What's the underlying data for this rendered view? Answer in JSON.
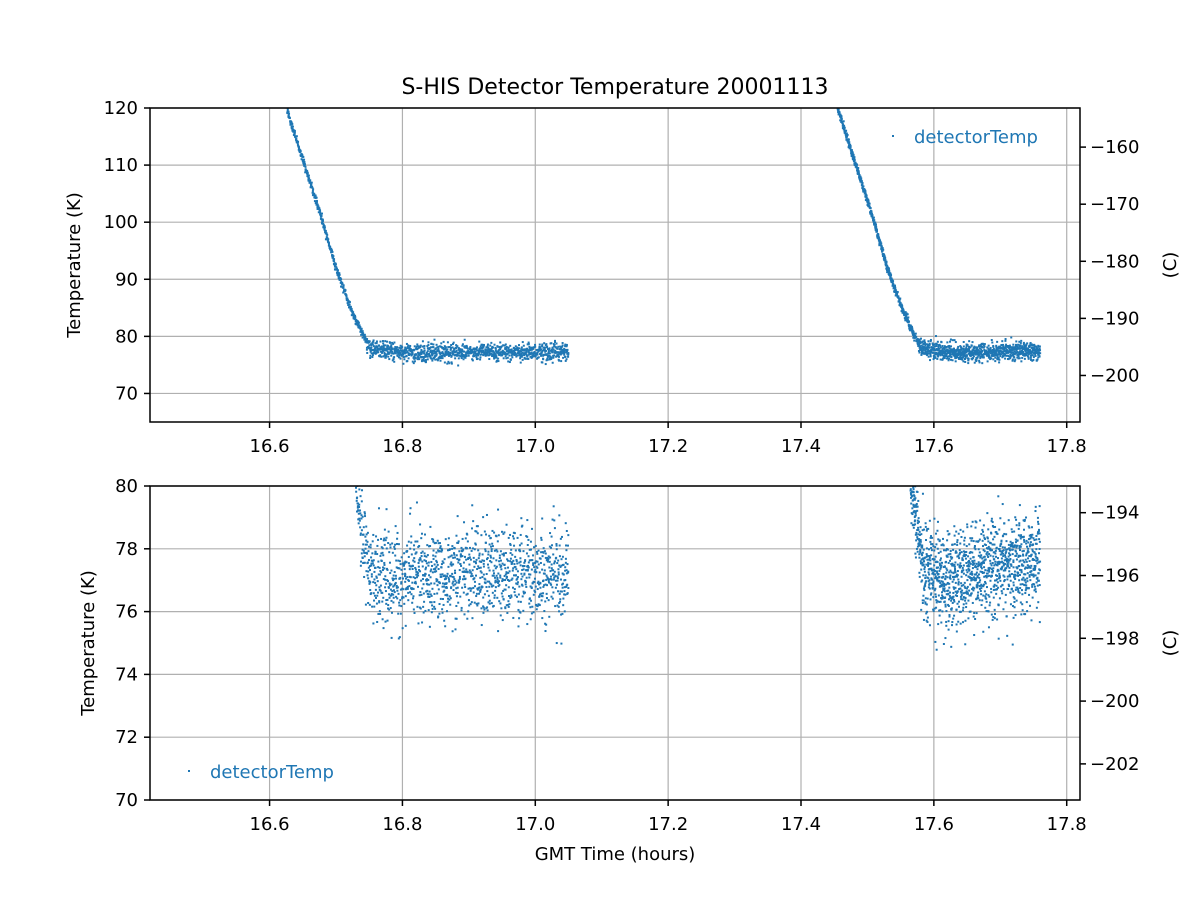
{
  "chart_data": [
    {
      "type": "scatter",
      "title": "S-HIS Detector Temperature 20001113",
      "xlabel": "",
      "ylabel": "Temperature (K)",
      "ylabel_right": "(C)",
      "xlim": [
        16.42,
        17.82
      ],
      "ylim": [
        65,
        120
      ],
      "ylim_right": [
        -208.15,
        -153.15
      ],
      "xticks": [
        16.6,
        16.8,
        17.0,
        17.2,
        17.4,
        17.6,
        17.8
      ],
      "xtick_labels": [
        "16.6",
        "16.8",
        "17.0",
        "17.2",
        "17.4",
        "17.6",
        "17.8"
      ],
      "yticks": [
        70,
        80,
        90,
        100,
        110,
        120
      ],
      "ytick_labels": [
        "70",
        "80",
        "90",
        "100",
        "110",
        "120"
      ],
      "yticks_right": [
        -200,
        -190,
        -180,
        -170,
        -160
      ],
      "ytick_labels_right": [
        "−200",
        "−190",
        "−180",
        "−170",
        "−160"
      ],
      "grid": true,
      "legend_position": "top-right",
      "color": "#1f77b4",
      "series": [
        {
          "name": "detectorTemp",
          "segments": [
            {
              "x": [
                16.625,
                16.65,
                16.675,
                16.7,
                16.725,
                16.75,
                16.8,
                16.85,
                16.9,
                16.95,
                17.0,
                17.05
              ],
              "y": [
                120,
                111,
                102,
                92,
                84,
                78,
                77.2,
                77.2,
                77.3,
                77.2,
                77.2,
                77.3
              ]
            },
            {
              "x": [
                17.455,
                17.48,
                17.505,
                17.53,
                17.555,
                17.58,
                17.62,
                17.66,
                17.7,
                17.74,
                17.76
              ],
              "y": [
                120,
                111,
                102,
                92,
                84,
                78,
                77.2,
                77.2,
                77.4,
                77.5,
                77.6
              ]
            }
          ],
          "plateau_noise_K": 1.0
        }
      ]
    },
    {
      "type": "scatter",
      "title": "",
      "xlabel": "GMT Time (hours)",
      "ylabel": "Temperature (K)",
      "ylabel_right": "(C)",
      "xlim": [
        16.42,
        17.82
      ],
      "ylim": [
        70,
        80
      ],
      "ylim_right": [
        -203.15,
        -193.15
      ],
      "xticks": [
        16.6,
        16.8,
        17.0,
        17.2,
        17.4,
        17.6,
        17.8
      ],
      "xtick_labels": [
        "16.6",
        "16.8",
        "17.0",
        "17.2",
        "17.4",
        "17.6",
        "17.8"
      ],
      "yticks": [
        70,
        72,
        74,
        76,
        78,
        80
      ],
      "ytick_labels": [
        "70",
        "72",
        "74",
        "76",
        "78",
        "80"
      ],
      "yticks_right": [
        -202,
        -200,
        -198,
        -196,
        -194
      ],
      "ytick_labels_right": [
        "−202",
        "−200",
        "−198",
        "−196",
        "−194"
      ],
      "grid": true,
      "legend_position": "bottom-left",
      "color": "#1f77b4",
      "series": [
        {
          "name": "detectorTemp",
          "segments": [
            {
              "x": [
                16.73,
                16.74,
                16.75,
                16.8,
                16.85,
                16.9,
                16.95,
                17.0,
                17.05
              ],
              "y": [
                80,
                78.5,
                77.2,
                77.0,
                77.2,
                77.3,
                77.2,
                77.2,
                77.3
              ]
            },
            {
              "x": [
                17.565,
                17.575,
                17.585,
                17.62,
                17.66,
                17.7,
                17.74,
                17.76
              ],
              "y": [
                80,
                78.5,
                77.3,
                77.0,
                77.2,
                77.4,
                77.5,
                77.6
              ]
            }
          ],
          "plateau_noise_K": 1.0
        }
      ]
    }
  ]
}
